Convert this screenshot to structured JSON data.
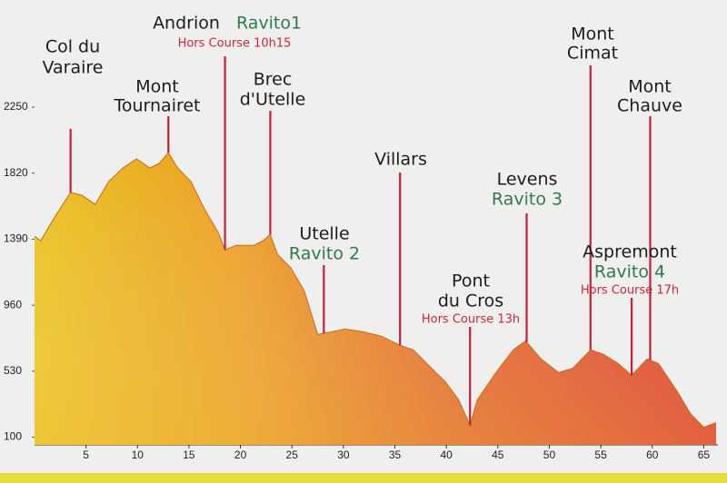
{
  "chart_data": {
    "type": "area",
    "x": [
      0,
      0.6,
      1.9,
      3.5,
      4.6,
      5.9,
      7.2,
      8.6,
      9.9,
      11.2,
      12.1,
      13.0,
      13.9,
      15.2,
      16.5,
      17.8,
      18.5,
      19.6,
      21.3,
      22.2,
      22.9,
      23.6,
      24.9,
      26.2,
      27.5,
      28.9,
      30.2,
      31.9,
      33.7,
      35.5,
      36.8,
      38.1,
      39.9,
      41.2,
      42.3,
      43.0,
      44.8,
      46.5,
      47.7,
      49.2,
      50.9,
      52.3,
      54.0,
      55.3,
      56.7,
      58.0,
      59.5,
      60.6,
      62.4,
      63.7,
      65.0,
      66.2
    ],
    "y": [
      1409,
      1380,
      1528,
      1694,
      1676,
      1617,
      1765,
      1854,
      1913,
      1854,
      1883,
      1954,
      1854,
      1765,
      1587,
      1439,
      1320,
      1350,
      1350,
      1380,
      1421,
      1291,
      1202,
      1054,
      769,
      787,
      805,
      787,
      758,
      698,
      669,
      580,
      461,
      343,
      177,
      343,
      521,
      669,
      728,
      610,
      521,
      550,
      669,
      639,
      580,
      503,
      610,
      580,
      402,
      254,
      165,
      195
    ],
    "xlim": [
      0,
      66.2
    ],
    "ylim": [
      50,
      2400
    ],
    "xticks": [
      5,
      10,
      15,
      20,
      25,
      30,
      35,
      40,
      45,
      50,
      55,
      60,
      65
    ],
    "yticks": [
      100,
      530,
      960,
      1390,
      1820,
      2250
    ],
    "annotation_color": "#c4203c",
    "annotations": [
      {
        "x": 3.5,
        "label": [
          "Col du",
          "Varaire"
        ]
      },
      {
        "x": 13.0,
        "label": [
          "Mont",
          "Tournairet"
        ]
      },
      {
        "x": 18.5,
        "label": [
          "Andrion"
        ],
        "sublabel": "Ravito1",
        "note": "Hors Course 10h15"
      },
      {
        "x": 22.9,
        "label": [
          "Brec",
          "d'Utelle"
        ]
      },
      {
        "x": 28.1,
        "label": [
          "Utelle"
        ],
        "sublabel": "Ravito 2"
      },
      {
        "x": 35.5,
        "label": [
          "Villars"
        ]
      },
      {
        "x": 42.3,
        "label": [
          "Pont",
          "du Cros"
        ],
        "note": "Hors Course 13h"
      },
      {
        "x": 47.8,
        "label": [
          "Levens"
        ],
        "sublabel": "Ravito 3"
      },
      {
        "x": 54.0,
        "label": [
          "Mont",
          "Cimat"
        ]
      },
      {
        "x": 59.8,
        "label": [
          "Mont",
          "Chauve"
        ]
      },
      {
        "x": 58.0,
        "label": [
          "Aspremont"
        ],
        "sublabel": "Ravito 4",
        "note": "Hors Course 17h"
      }
    ]
  }
}
